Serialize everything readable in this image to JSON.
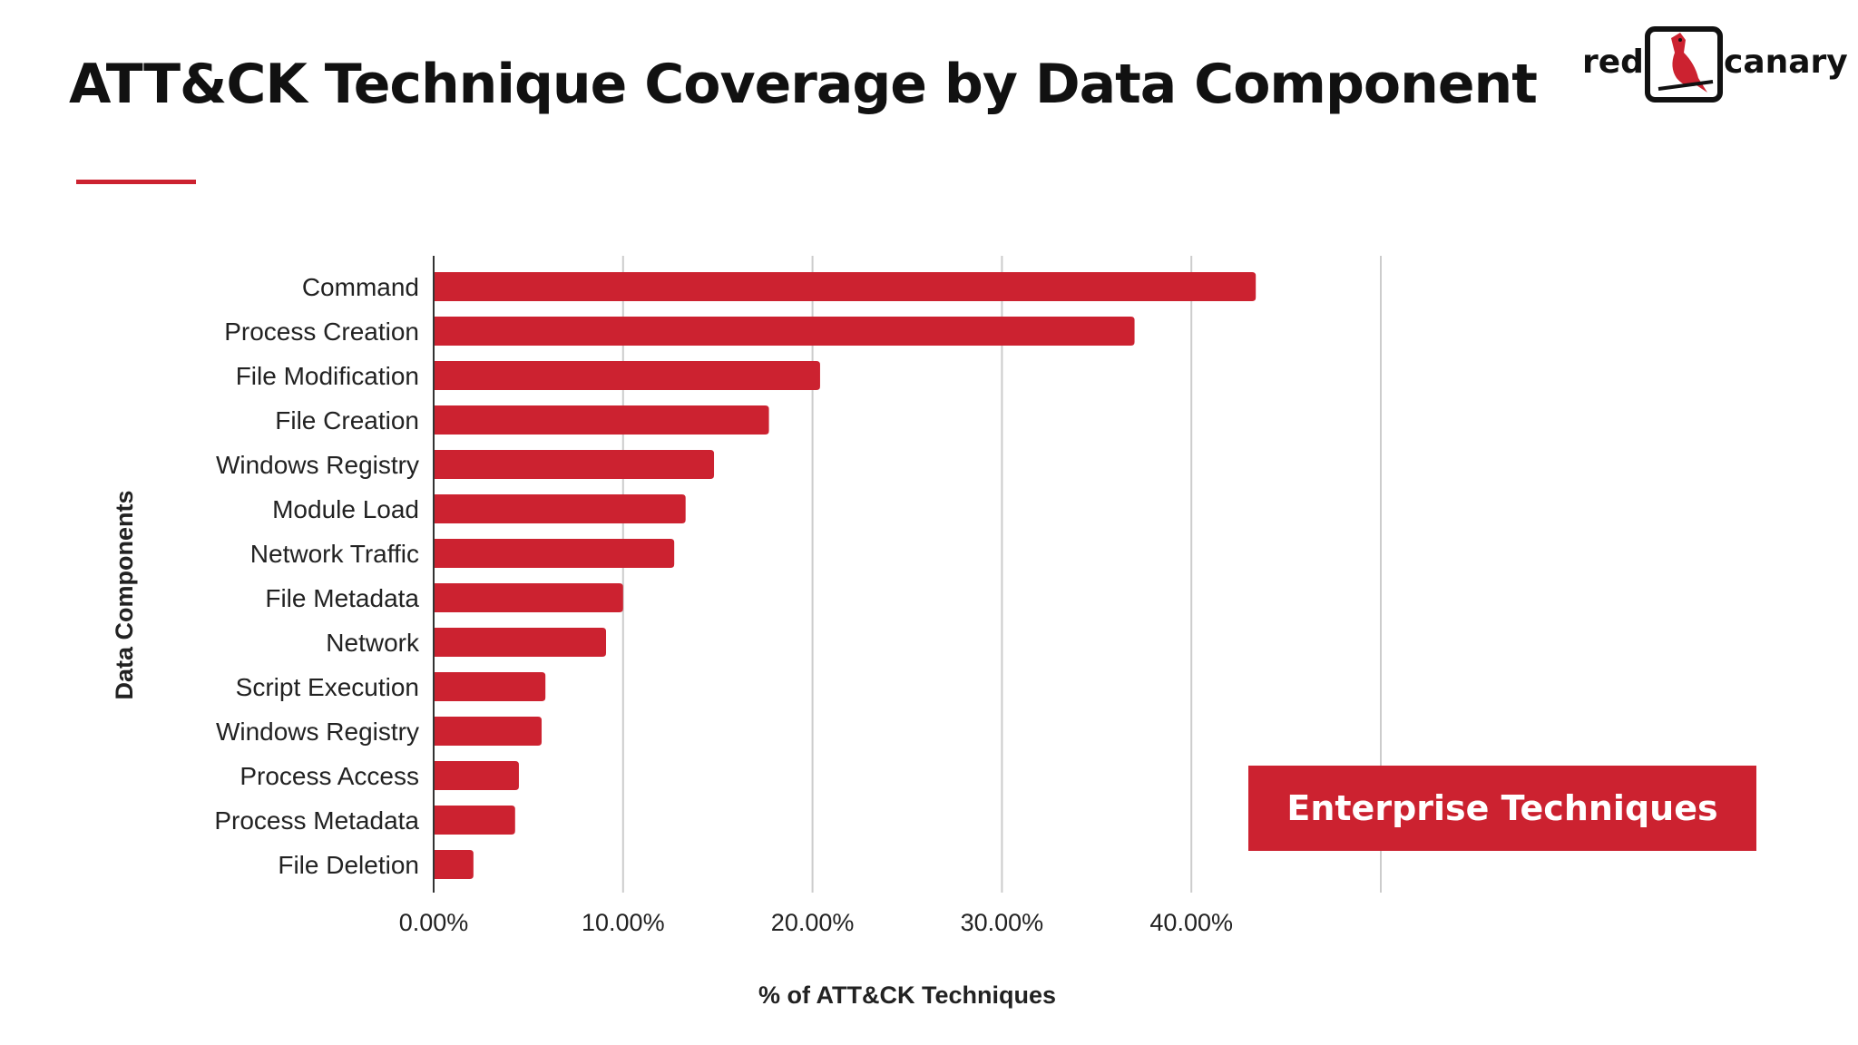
{
  "slide": {
    "title": "ATT&CK Technique Coverage by Data Component",
    "badge_label": "Enterprise Techniques"
  },
  "logo": {
    "text_left": "red",
    "text_right": "canary",
    "icon": "canary-bird-icon"
  },
  "colors": {
    "bar": "#cc2230",
    "accent": "#cc2230",
    "grid": "#cccccc",
    "text": "#111111"
  },
  "chart_data": {
    "type": "bar",
    "orientation": "horizontal",
    "categories": [
      "Command",
      "Process Creation",
      "File Modification",
      "File Creation",
      "Windows Registry",
      "Module Load",
      "Network Traffic",
      "File Metadata",
      "Network",
      "Script Execution",
      "Windows Registry",
      "Process Access",
      "Process Metadata",
      "File Deletion"
    ],
    "values": [
      43.4,
      37.0,
      20.4,
      17.7,
      14.8,
      13.3,
      12.7,
      10.0,
      9.1,
      5.9,
      5.7,
      4.5,
      4.3,
      2.1
    ],
    "title": "",
    "xlabel": "% of ATT&CK Techniques",
    "ylabel": "Data Components",
    "xlim": [
      0,
      50
    ],
    "xticks": [
      "0.00%",
      "10.00%",
      "20.00%",
      "30.00%",
      "40.00%"
    ],
    "grid": "vertical",
    "legend": "none"
  }
}
